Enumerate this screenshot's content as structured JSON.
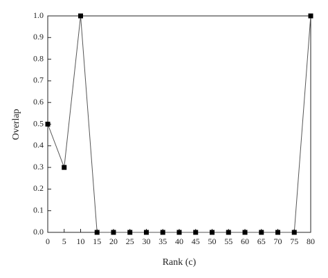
{
  "chart_data": {
    "type": "line",
    "x_label": "Rank (c)",
    "y_label": "Overlap",
    "x": [
      0,
      5,
      10,
      15,
      20,
      25,
      30,
      35,
      40,
      45,
      50,
      55,
      60,
      65,
      70,
      75,
      80
    ],
    "series": [
      {
        "color": "#000000",
        "values": [
          0.5,
          0.3,
          1.0,
          0,
          0,
          0,
          0,
          0,
          0,
          0,
          0,
          0,
          0,
          0,
          0,
          0,
          1.0
        ]
      }
    ],
    "xlim": [
      0,
      80
    ],
    "xticks": [
      0,
      5,
      10,
      15,
      20,
      25,
      30,
      35,
      40,
      45,
      50,
      55,
      60,
      65,
      70,
      75,
      80
    ],
    "ylim": [
      0,
      1.0
    ],
    "yticks": [
      {
        "value": 0,
        "label": "0.0"
      },
      0.1,
      0.2,
      0.3,
      0.4,
      0.5,
      0.6,
      0.7,
      0.8,
      0.9,
      {
        "value": 1.0,
        "label": "1.0"
      }
    ]
  }
}
